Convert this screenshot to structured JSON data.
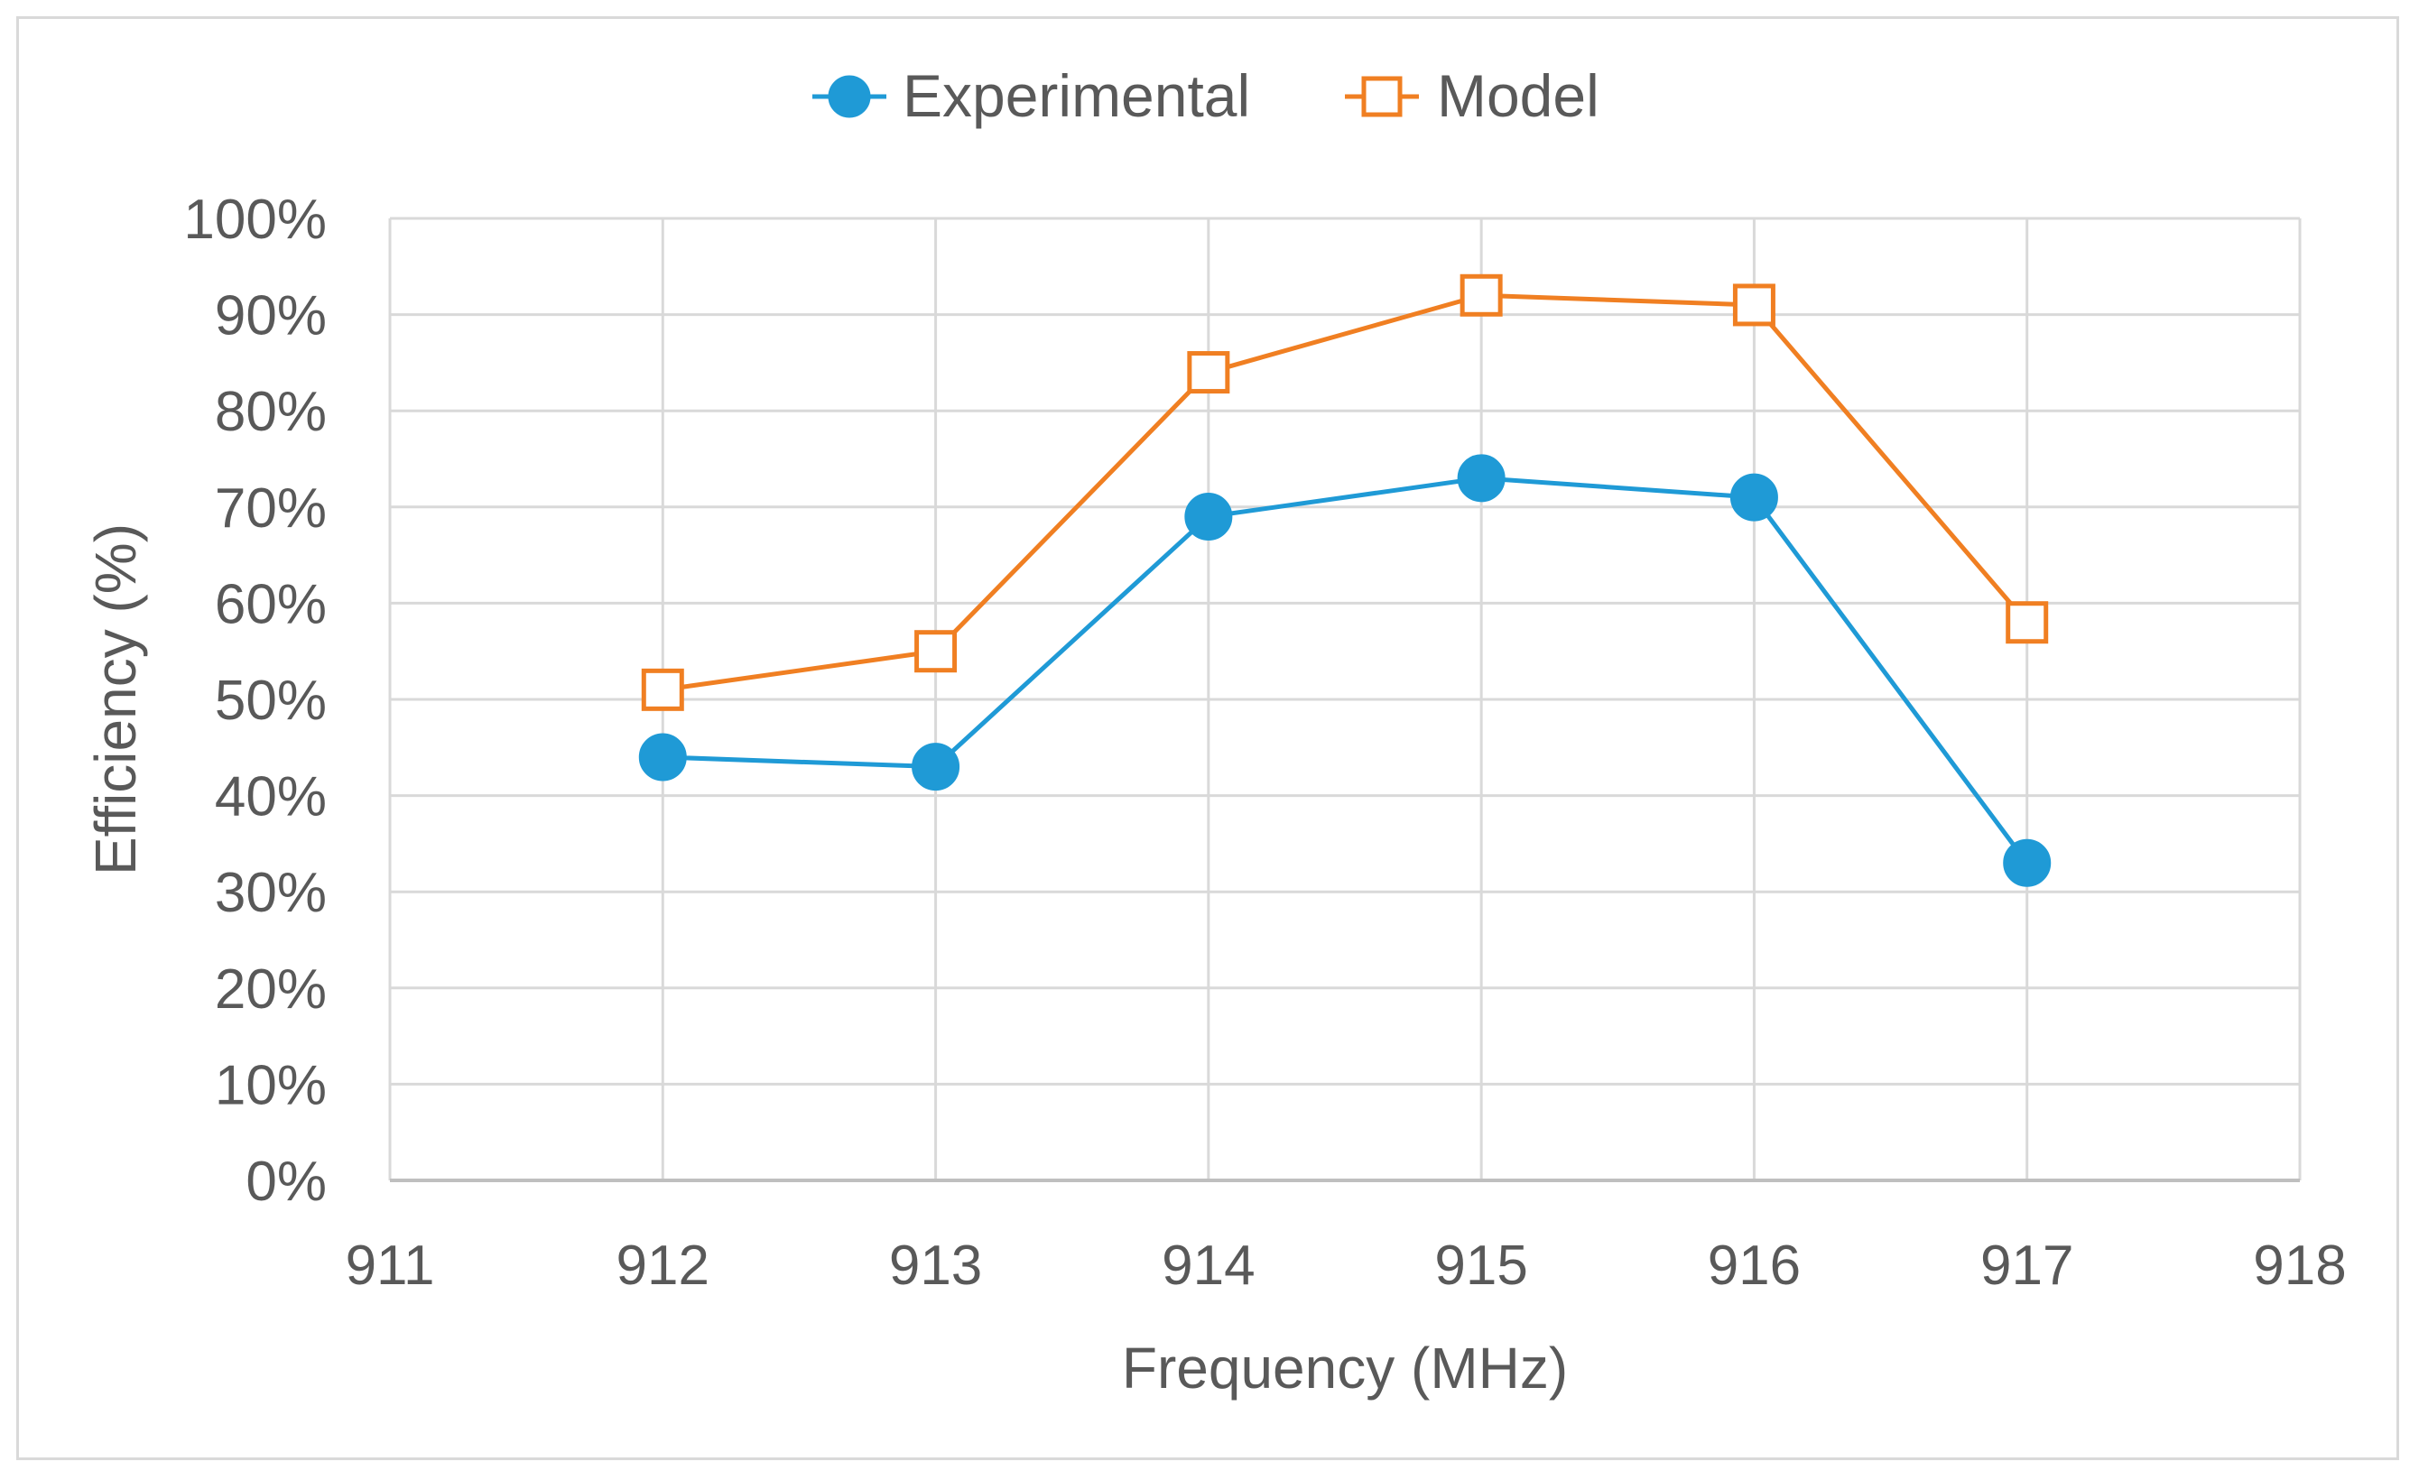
{
  "chart_data": {
    "type": "line",
    "title": "",
    "xlabel": "Frequency (MHz)",
    "ylabel": "Efficiency (%)",
    "xlim": [
      911,
      918
    ],
    "ylim": [
      0,
      100
    ],
    "x_ticks": [
      "911",
      "912",
      "913",
      "914",
      "915",
      "916",
      "917",
      "918"
    ],
    "y_ticks": [
      "0%",
      "10%",
      "20%",
      "30%",
      "40%",
      "50%",
      "60%",
      "70%",
      "80%",
      "90%",
      "100%"
    ],
    "x": [
      912,
      913,
      914,
      915,
      916,
      917
    ],
    "series": [
      {
        "name": "Experimental",
        "values": [
          44,
          43,
          69,
          73,
          71,
          33
        ],
        "color": "#1f9ad6",
        "marker": "filled-circle"
      },
      {
        "name": "Model",
        "values": [
          51,
          55,
          84,
          92,
          91,
          58
        ],
        "color": "#f07f22",
        "marker": "open-square"
      }
    ],
    "grid": true,
    "legend_position": "top"
  }
}
